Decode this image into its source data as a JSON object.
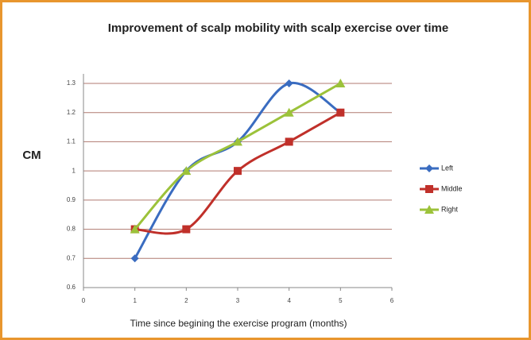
{
  "chart_data": {
    "type": "line",
    "title": "Improvement of scalp mobility with scalp exercise over time",
    "x_label": "Time since begining the exercise program (months)",
    "y_label": "CM",
    "x": [
      1,
      2,
      3,
      4,
      5
    ],
    "series": [
      {
        "name": "Left",
        "color": "#3a6cc0",
        "marker": "diamond",
        "values": [
          0.7,
          1.0,
          1.1,
          1.3,
          1.2
        ]
      },
      {
        "name": "Middle",
        "color": "#c0302a",
        "marker": "square",
        "values": [
          0.8,
          0.8,
          1.0,
          1.1,
          1.2
        ]
      },
      {
        "name": "Right",
        "color": "#9cc23a",
        "marker": "triangle",
        "values": [
          0.8,
          1.0,
          1.1,
          1.2,
          1.3
        ]
      }
    ],
    "xlim": [
      0,
      6
    ],
    "xticks": [
      0,
      1,
      2,
      3,
      4,
      5,
      6
    ],
    "ylim": [
      0.6,
      1.3
    ],
    "yticks": [
      0.6,
      0.7,
      0.8,
      0.9,
      1,
      1.1,
      1.2,
      1.3
    ],
    "grid": true,
    "legend": "right",
    "smooth": true
  }
}
